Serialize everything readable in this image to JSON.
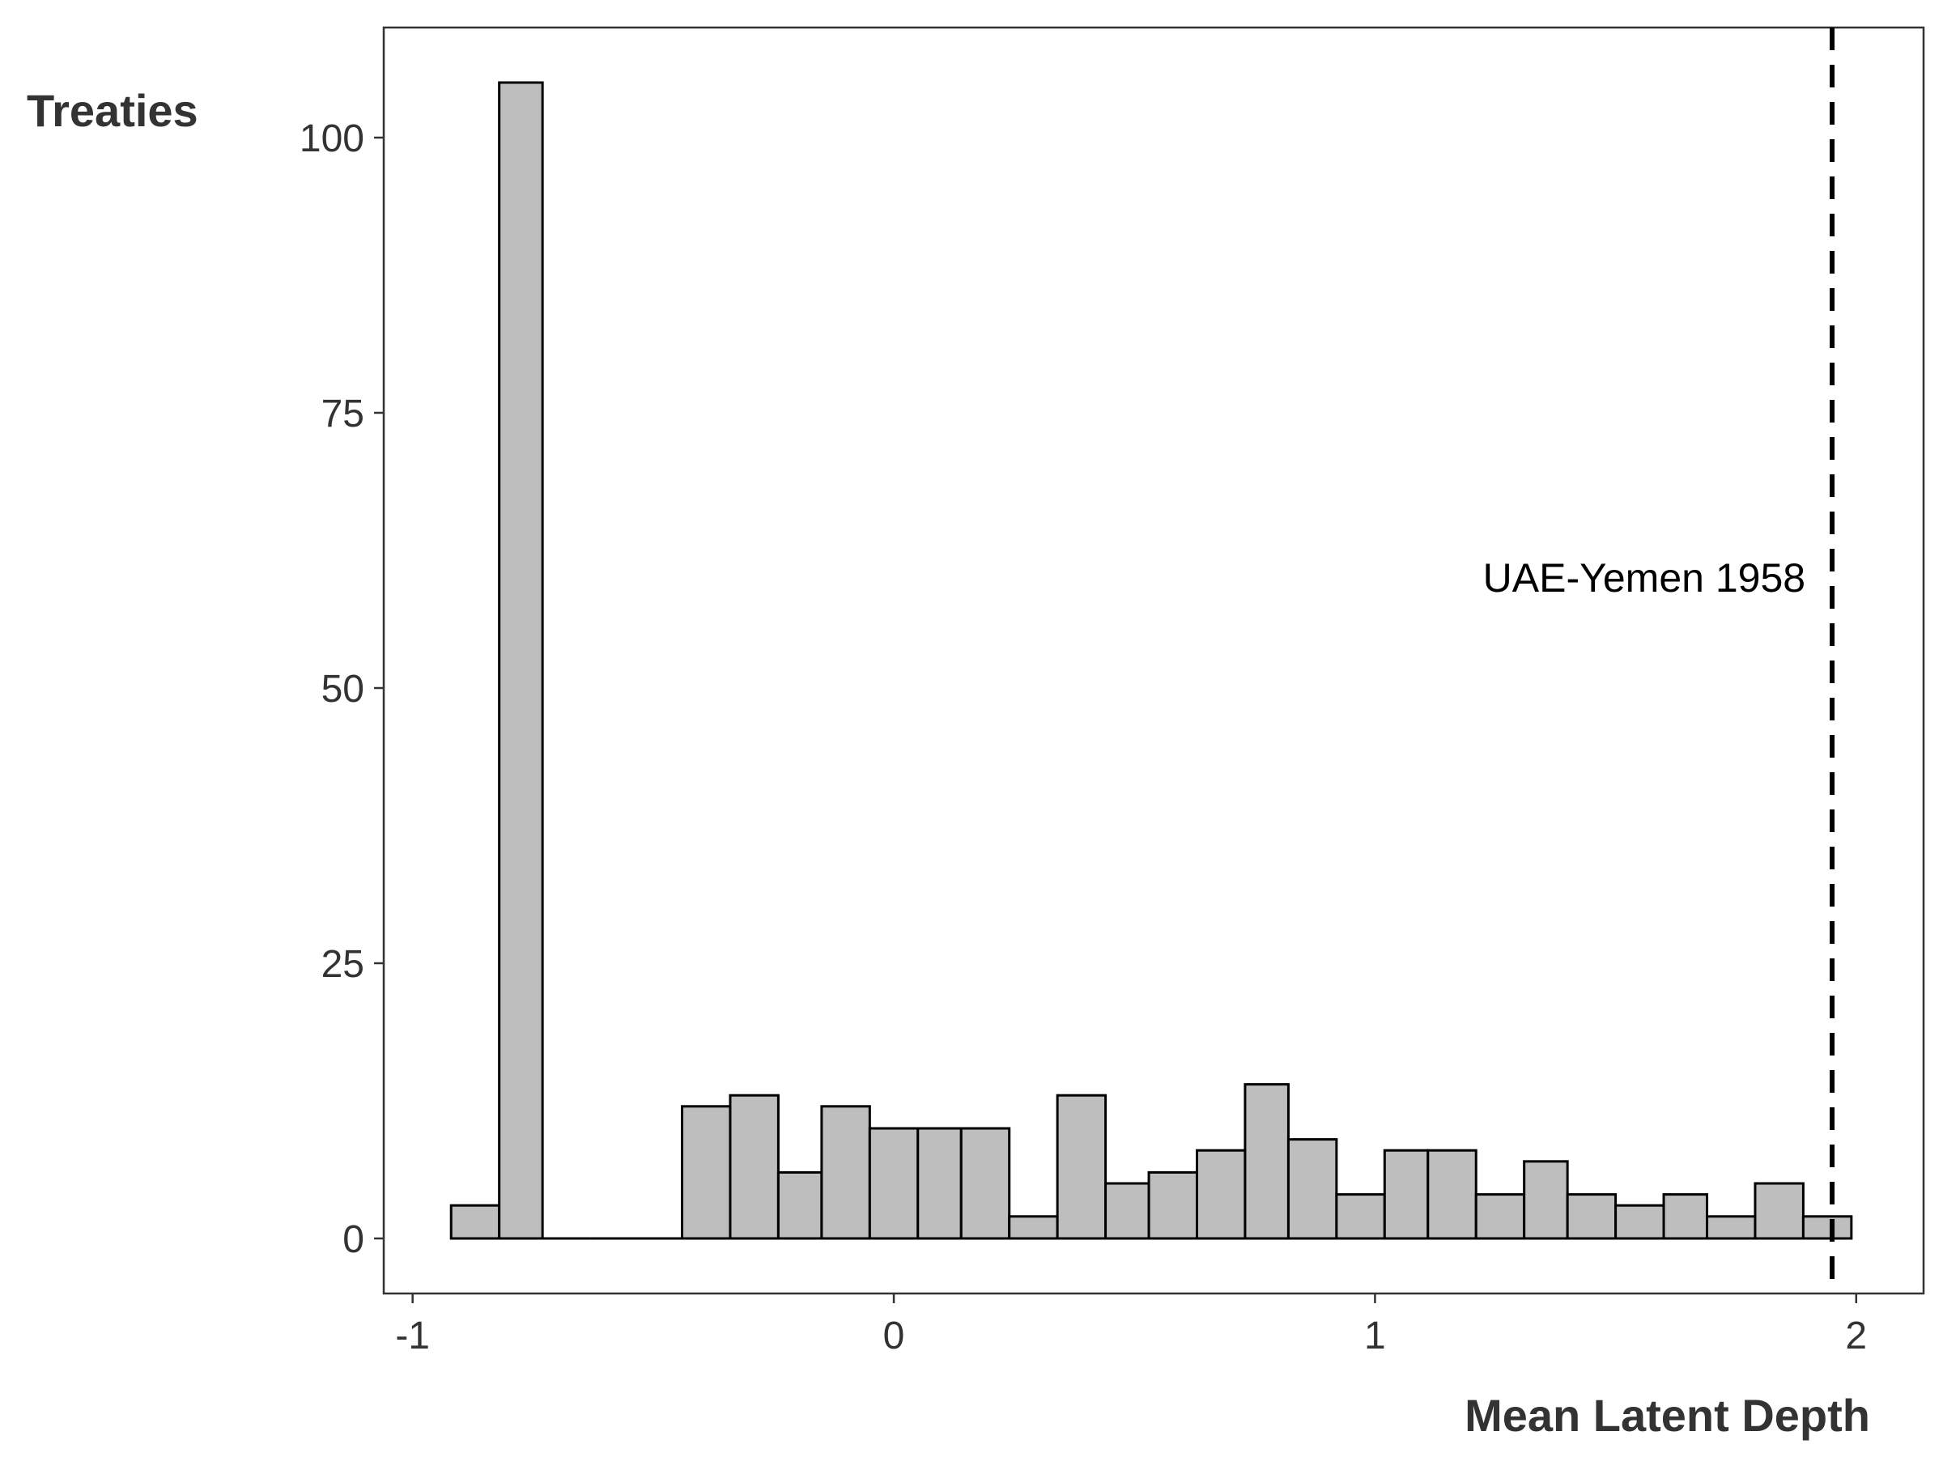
{
  "chart_data": {
    "type": "bar",
    "subtype": "histogram",
    "xlabel": "Mean Latent Depth",
    "ylabel": "Treaties",
    "xlim": [
      -1.06,
      2.14
    ],
    "ylim": [
      -5.0,
      110.0
    ],
    "x_ticks": [
      -1,
      0,
      1,
      2
    ],
    "x_tick_labels": [
      "-1",
      "0",
      "1",
      "2"
    ],
    "y_ticks": [
      0,
      25,
      50,
      75,
      100
    ],
    "y_tick_labels": [
      "0",
      "25",
      "50",
      "75",
      "100"
    ],
    "grid": false,
    "bin_width": 0.097,
    "bins": [
      {
        "x0": -0.92,
        "x1": -0.82,
        "count": 3
      },
      {
        "x0": -0.82,
        "x1": -0.73,
        "count": 105
      },
      {
        "x0": -0.73,
        "x1": -0.63,
        "count": 0
      },
      {
        "x0": -0.63,
        "x1": -0.53,
        "count": 0
      },
      {
        "x0": -0.53,
        "x1": -0.44,
        "count": 0
      },
      {
        "x0": -0.44,
        "x1": -0.34,
        "count": 12
      },
      {
        "x0": -0.34,
        "x1": -0.24,
        "count": 13
      },
      {
        "x0": -0.24,
        "x1": -0.15,
        "count": 6
      },
      {
        "x0": -0.15,
        "x1": -0.05,
        "count": 12
      },
      {
        "x0": -0.05,
        "x1": 0.05,
        "count": 10
      },
      {
        "x0": 0.05,
        "x1": 0.14,
        "count": 10
      },
      {
        "x0": 0.14,
        "x1": 0.24,
        "count": 10
      },
      {
        "x0": 0.24,
        "x1": 0.34,
        "count": 2
      },
      {
        "x0": 0.34,
        "x1": 0.44,
        "count": 13
      },
      {
        "x0": 0.44,
        "x1": 0.53,
        "count": 5
      },
      {
        "x0": 0.53,
        "x1": 0.63,
        "count": 6
      },
      {
        "x0": 0.63,
        "x1": 0.73,
        "count": 8
      },
      {
        "x0": 0.73,
        "x1": 0.82,
        "count": 14
      },
      {
        "x0": 0.82,
        "x1": 0.92,
        "count": 9
      },
      {
        "x0": 0.92,
        "x1": 1.02,
        "count": 4
      },
      {
        "x0": 1.02,
        "x1": 1.11,
        "count": 8
      },
      {
        "x0": 1.11,
        "x1": 1.21,
        "count": 8
      },
      {
        "x0": 1.21,
        "x1": 1.31,
        "count": 4
      },
      {
        "x0": 1.31,
        "x1": 1.4,
        "count": 7
      },
      {
        "x0": 1.4,
        "x1": 1.5,
        "count": 4
      },
      {
        "x0": 1.5,
        "x1": 1.6,
        "count": 3
      },
      {
        "x0": 1.6,
        "x1": 1.69,
        "count": 4
      },
      {
        "x0": 1.69,
        "x1": 1.79,
        "count": 2
      },
      {
        "x0": 1.79,
        "x1": 1.89,
        "count": 5
      },
      {
        "x0": 1.89,
        "x1": 1.99,
        "count": 2
      }
    ],
    "reference_line": {
      "x": 1.95,
      "style": "dashed",
      "label": "UAE-Yemen 1958",
      "label_y": 60
    },
    "colors": {
      "bar_fill": "#bebebe",
      "bar_stroke": "#000000",
      "axis": "#333333",
      "reference_line": "#000000"
    }
  }
}
